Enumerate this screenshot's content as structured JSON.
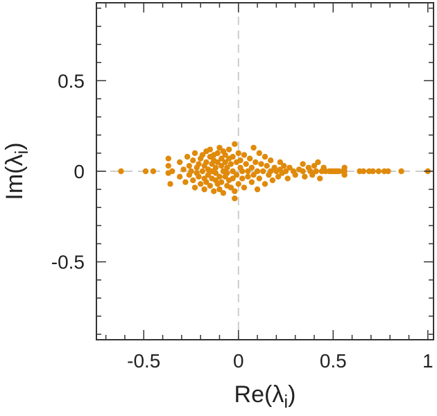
{
  "chart_data": {
    "type": "scatter",
    "title": "",
    "xlabel": "Re(λi)",
    "ylabel": "Im(λi)",
    "xlabel_parts": {
      "prefix": "Re(",
      "symbol": "λ",
      "subscript": "i",
      "suffix": ")"
    },
    "ylabel_parts": {
      "prefix": "Im(",
      "symbol": "λ",
      "subscript": "i",
      "suffix": ")"
    },
    "xlim": [
      -0.75,
      1.03
    ],
    "ylim": [
      -0.93,
      0.93
    ],
    "xticks": [
      -0.5,
      0,
      0.5,
      1
    ],
    "xtick_labels": [
      "-0.5",
      "0",
      "0.5",
      "1"
    ],
    "yticks": [
      -0.5,
      0,
      0.5
    ],
    "ytick_labels": [
      "-0.5",
      "0",
      "0.5"
    ],
    "x_minor_step": 0.1,
    "y_minor_step": 0.1,
    "grid": false,
    "reference_lines": {
      "x": 0,
      "y": 0,
      "style": "dashed",
      "color": "#cccccc"
    },
    "marker_color": "#e08a0b",
    "axis_color": "#333333",
    "series": [
      {
        "points": [
          [
            -0.62,
            0.0
          ],
          [
            -0.49,
            0.0
          ],
          [
            -0.45,
            0.0
          ],
          [
            -0.37,
            0.07
          ],
          [
            -0.37,
            0.03
          ],
          [
            -0.37,
            -0.01
          ],
          [
            -0.36,
            -0.07
          ],
          [
            -0.35,
            0.0
          ],
          [
            -0.31,
            0.05
          ],
          [
            -0.31,
            -0.03
          ],
          [
            -0.29,
            0.01
          ],
          [
            -0.28,
            -0.06
          ],
          [
            -0.27,
            0.08
          ],
          [
            -0.26,
            0.03
          ],
          [
            -0.26,
            -0.02
          ],
          [
            -0.25,
            0.0
          ],
          [
            -0.24,
            0.06
          ],
          [
            -0.24,
            -0.05
          ],
          [
            -0.23,
            0.1
          ],
          [
            -0.23,
            -0.09
          ],
          [
            -0.22,
            0.02
          ],
          [
            -0.22,
            -0.01
          ],
          [
            -0.21,
            0.04
          ],
          [
            -0.21,
            -0.03
          ],
          [
            -0.2,
            0.07
          ],
          [
            -0.2,
            -0.07
          ],
          [
            -0.19,
            0.0
          ],
          [
            -0.19,
            0.09
          ],
          [
            -0.18,
            -0.1
          ],
          [
            -0.18,
            0.03
          ],
          [
            -0.18,
            -0.04
          ],
          [
            -0.17,
            0.11
          ],
          [
            -0.17,
            0.05
          ],
          [
            -0.17,
            -0.06
          ],
          [
            -0.16,
            0.01
          ],
          [
            -0.16,
            -0.02
          ],
          [
            -0.15,
            0.08
          ],
          [
            -0.15,
            -0.08
          ],
          [
            -0.15,
            0.12
          ],
          [
            -0.14,
            0.04
          ],
          [
            -0.14,
            -0.04
          ],
          [
            -0.14,
            0.0
          ],
          [
            -0.13,
            0.06
          ],
          [
            -0.13,
            -0.11
          ],
          [
            -0.13,
            0.09
          ],
          [
            -0.12,
            -0.05
          ],
          [
            -0.12,
            0.02
          ],
          [
            -0.12,
            -0.01
          ],
          [
            -0.11,
            0.1
          ],
          [
            -0.11,
            -0.07
          ],
          [
            -0.11,
            0.05
          ],
          [
            -0.1,
            -0.03
          ],
          [
            -0.1,
            0.13
          ],
          [
            -0.1,
            -0.1
          ],
          [
            -0.09,
            0.03
          ],
          [
            -0.09,
            0.07
          ],
          [
            -0.09,
            -0.06
          ],
          [
            -0.08,
            0.0
          ],
          [
            -0.08,
            0.11
          ],
          [
            -0.08,
            -0.12
          ],
          [
            -0.07,
            0.05
          ],
          [
            -0.07,
            -0.03
          ],
          [
            -0.07,
            0.09
          ],
          [
            -0.06,
            -0.08
          ],
          [
            -0.06,
            0.02
          ],
          [
            -0.06,
            -0.01
          ],
          [
            -0.05,
            0.07
          ],
          [
            -0.05,
            -0.05
          ],
          [
            -0.05,
            0.12
          ],
          [
            -0.04,
            0.04
          ],
          [
            -0.04,
            -0.09
          ],
          [
            -0.03,
            0.0
          ],
          [
            -0.03,
            0.08
          ],
          [
            -0.03,
            -0.04
          ],
          [
            -0.02,
            0.15
          ],
          [
            -0.02,
            -0.11
          ],
          [
            -0.02,
            -0.15
          ],
          [
            -0.01,
            0.05
          ],
          [
            -0.01,
            -0.02
          ],
          [
            0.0,
            0.1
          ],
          [
            0.0,
            -0.07
          ],
          [
            0.01,
            0.02
          ],
          [
            0.01,
            0.06
          ],
          [
            0.02,
            -0.04
          ],
          [
            0.02,
            0.0
          ],
          [
            0.03,
            0.09
          ],
          [
            0.03,
            -0.09
          ],
          [
            0.04,
            0.04
          ],
          [
            0.05,
            0.0
          ],
          [
            0.05,
            -0.03
          ],
          [
            0.06,
            0.07
          ],
          [
            0.07,
            -0.06
          ],
          [
            0.07,
            0.02
          ],
          [
            0.08,
            0.13
          ],
          [
            0.08,
            -0.02
          ],
          [
            0.09,
            0.05
          ],
          [
            0.1,
            -0.1
          ],
          [
            0.1,
            0.0
          ],
          [
            0.11,
            0.1
          ],
          [
            0.11,
            -0.04
          ],
          [
            0.12,
            0.04
          ],
          [
            0.13,
            0.0
          ],
          [
            0.14,
            0.08
          ],
          [
            0.14,
            -0.07
          ],
          [
            0.15,
            0.03
          ],
          [
            0.16,
            -0.02
          ],
          [
            0.17,
            0.06
          ],
          [
            0.17,
            0.0
          ],
          [
            0.18,
            -0.05
          ],
          [
            0.19,
            0.02
          ],
          [
            0.2,
            0.0
          ],
          [
            0.21,
            -0.03
          ],
          [
            0.22,
            0.05
          ],
          [
            0.22,
            0.01
          ],
          [
            0.23,
            -0.01
          ],
          [
            0.24,
            0.03
          ],
          [
            0.25,
            0.0
          ],
          [
            0.26,
            -0.04
          ],
          [
            0.27,
            0.02
          ],
          [
            0.29,
            0.0
          ],
          [
            0.3,
            -0.02
          ],
          [
            0.32,
            0.01
          ],
          [
            0.34,
            0.04
          ],
          [
            0.34,
            0.0
          ],
          [
            0.35,
            -0.03
          ],
          [
            0.37,
            0.02
          ],
          [
            0.38,
            0.0
          ],
          [
            0.39,
            -0.02
          ],
          [
            0.4,
            0.03
          ],
          [
            0.41,
            0.0
          ],
          [
            0.42,
            0.05
          ],
          [
            0.43,
            -0.04
          ],
          [
            0.44,
            0.0
          ],
          [
            0.45,
            0.02
          ],
          [
            0.46,
            0.0
          ],
          [
            0.48,
            0.0
          ],
          [
            0.49,
            0.0
          ],
          [
            0.5,
            0.0
          ],
          [
            0.51,
            0.0
          ],
          [
            0.52,
            0.0
          ],
          [
            0.53,
            0.0
          ],
          [
            0.55,
            0.0
          ],
          [
            0.56,
            0.02
          ],
          [
            0.56,
            -0.02
          ],
          [
            0.56,
            0.0
          ],
          [
            0.64,
            0.0
          ],
          [
            0.66,
            0.0
          ],
          [
            0.69,
            0.0
          ],
          [
            0.71,
            0.0
          ],
          [
            0.74,
            0.0
          ],
          [
            0.77,
            0.0
          ],
          [
            0.79,
            0.0
          ],
          [
            0.86,
            0.0
          ],
          [
            1.0,
            0.0
          ]
        ]
      }
    ]
  }
}
